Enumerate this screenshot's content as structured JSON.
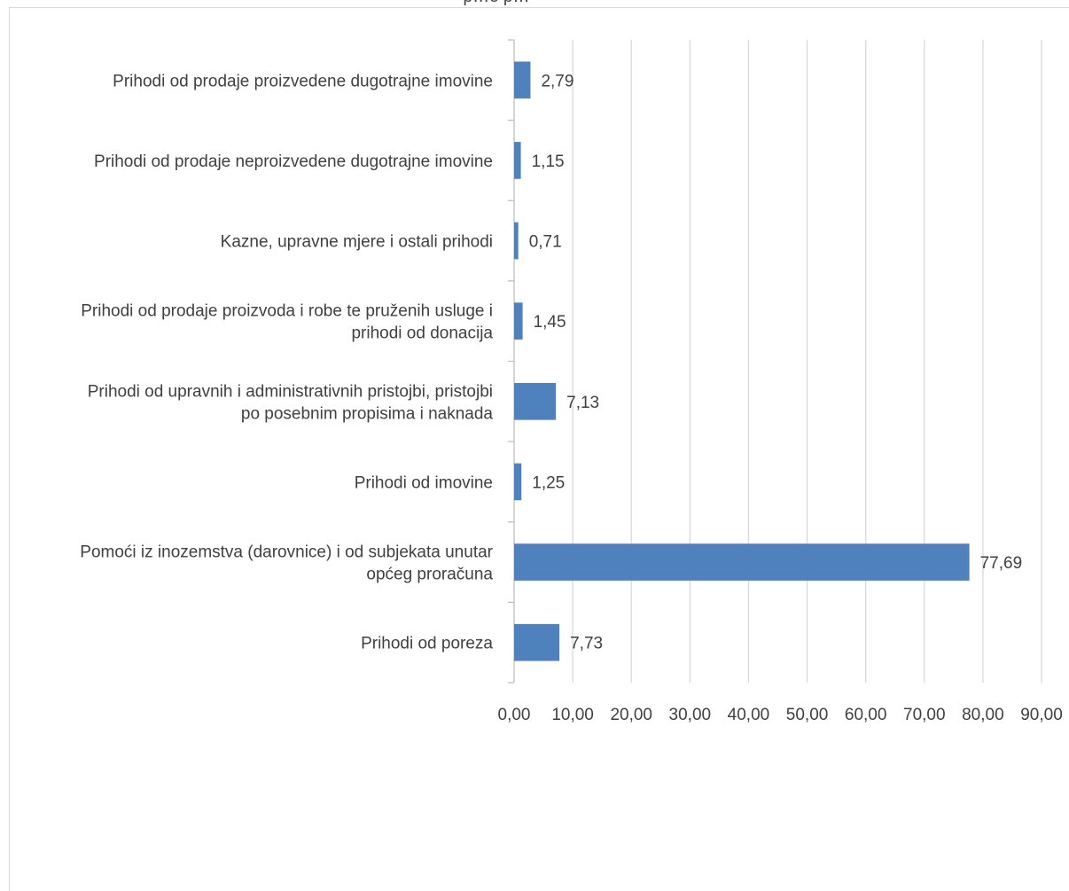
{
  "chart_data": {
    "type": "bar",
    "orientation": "horizontal",
    "top_text": "p…o p…",
    "categories": [
      "Prihodi od prodaje proizvedene dugotrajne imovine",
      "Prihodi od prodaje neproizvedene dugotrajne imovine",
      "Kazne, upravne mjere i ostali prihodi",
      "Prihodi od prodaje proizvoda i robe te pruženih usluge i prihodi od donacija",
      "Prihodi od upravnih i administrativnih pristojbi, pristojbi po posebnim propisima i naknada",
      "Prihodi od imovine",
      "Pomoći iz inozemstva (darovnice) i od subjekata unutar općeg proračuna",
      "Prihodi od poreza"
    ],
    "category_lines": [
      [
        "Prihodi od prodaje proizvedene dugotrajne imovine"
      ],
      [
        "Prihodi od prodaje neproizvedene dugotrajne imovine"
      ],
      [
        "Kazne, upravne mjere i ostali prihodi"
      ],
      [
        "Prihodi od prodaje proizvoda i robe te pruženih usluge i",
        "prihodi od donacija"
      ],
      [
        "Prihodi od upravnih i administrativnih pristojbi, pristojbi",
        "po posebnim propisima i naknada"
      ],
      [
        "Prihodi od imovine"
      ],
      [
        "Pomoći iz inozemstva (darovnice) i od subjekata unutar",
        "općeg proračuna"
      ],
      [
        "Prihodi od poreza"
      ]
    ],
    "values": [
      2.79,
      1.15,
      0.71,
      1.45,
      7.13,
      1.25,
      77.69,
      7.73
    ],
    "value_labels": [
      "2,79",
      "1,15",
      "0,71",
      "1,45",
      "7,13",
      "1,25",
      "77,69",
      "7,73"
    ],
    "xlim": [
      0,
      90
    ],
    "x_ticks": [
      0,
      10,
      20,
      30,
      40,
      50,
      60,
      70,
      80,
      90
    ],
    "x_tick_labels": [
      "0,00",
      "10,00",
      "20,00",
      "30,00",
      "40,00",
      "50,00",
      "60,00",
      "70,00",
      "80,00",
      "90,00"
    ],
    "title": "",
    "xlabel": "",
    "ylabel": "",
    "grid": true,
    "legend": "none",
    "colors": {
      "bar": "#4F81BD",
      "grid": "#D9D9D9",
      "axis": "#BFBFBF",
      "text": "#404040",
      "border": "#D9D9D9"
    }
  }
}
